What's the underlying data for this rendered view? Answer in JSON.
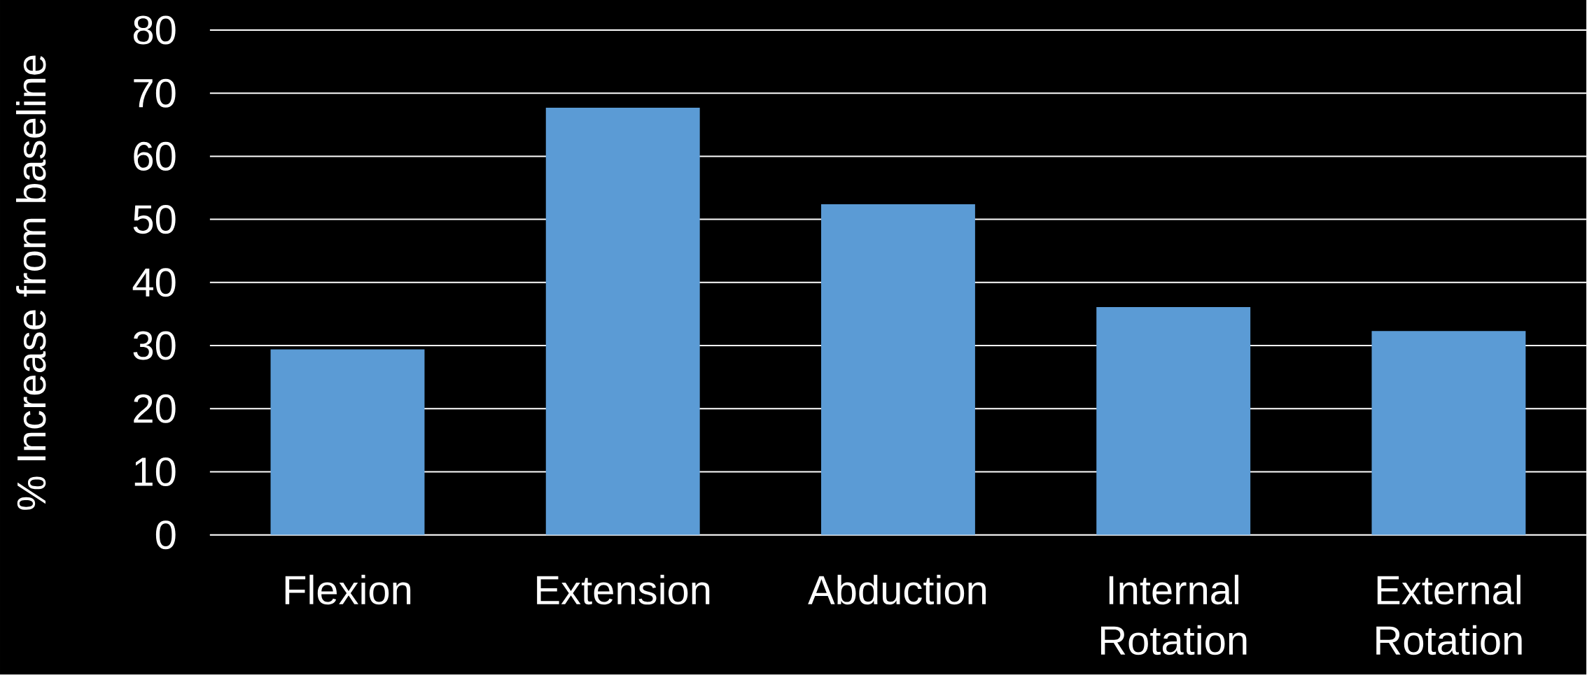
{
  "chart_data": {
    "type": "bar",
    "ylabel": "% Increase from baseline",
    "categories": [
      "Flexion",
      "Extension",
      "Abduction",
      "Internal Rotation",
      "External Rotation"
    ],
    "values": [
      29.4,
      67.7,
      52.4,
      36.1,
      32.3
    ],
    "color": "#5b9bd5",
    "ylim": [
      0,
      80
    ],
    "yticks": [
      0,
      10,
      20,
      30,
      40,
      50,
      60,
      70,
      80
    ],
    "grid": "y",
    "legend": false
  }
}
